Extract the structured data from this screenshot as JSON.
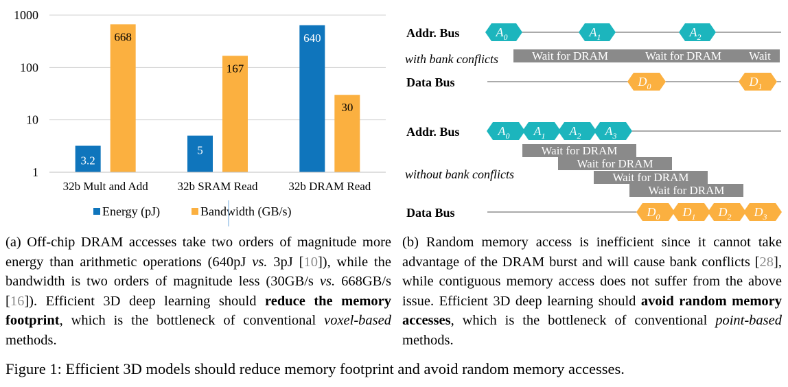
{
  "chart_data": {
    "type": "bar",
    "scale": "log",
    "ylim": [
      1,
      1000
    ],
    "y_ticks": [
      "1",
      "10",
      "100",
      "1000"
    ],
    "grid": true,
    "legend_position": "bottom",
    "categories": [
      "32b Mult and Add",
      "32b SRAM Read",
      "32b DRAM Read"
    ],
    "series": [
      {
        "name": "Energy (pJ)",
        "color": "#0f75bc",
        "values": [
          3.2,
          5,
          640
        ],
        "labels": [
          "3.2",
          "5",
          "640"
        ]
      },
      {
        "name": "Bandwidth (GB/s)",
        "color": "#fbb040",
        "values": [
          668,
          167,
          30
        ],
        "labels": [
          "668",
          "167",
          "30"
        ]
      }
    ]
  },
  "diagram": {
    "addr_color": "#1cb5bd",
    "data_color": "#fbb040",
    "wait_color": "#8a8a8a",
    "top": {
      "addr_label": "Addr. Bus",
      "conflict_label": "with bank conflicts",
      "data_label": "Data Bus",
      "addr_tokens": [
        {
          "base": "A",
          "sub": "0"
        },
        {
          "base": "A",
          "sub": "1"
        },
        {
          "base": "A",
          "sub": "2"
        }
      ],
      "wait_labels": [
        "Wait for DRAM",
        "Wait for DRAM",
        "Wait"
      ],
      "data_tokens": [
        {
          "base": "D",
          "sub": "0"
        },
        {
          "base": "D",
          "sub": "1"
        }
      ]
    },
    "bottom": {
      "addr_label": "Addr. Bus",
      "conflict_label": "without bank conflicts",
      "data_label": "Data  Bus",
      "addr_tokens": [
        {
          "base": "A",
          "sub": "0"
        },
        {
          "base": "A",
          "sub": "1"
        },
        {
          "base": "A",
          "sub": "2"
        },
        {
          "base": "A",
          "sub": "3"
        }
      ],
      "wait_labels": [
        "Wait for DRAM",
        "Wait for DRAM",
        "Wait for DRAM",
        "Wait for DRAM"
      ],
      "data_tokens": [
        {
          "base": "D",
          "sub": "0"
        },
        {
          "base": "D",
          "sub": "1"
        },
        {
          "base": "D",
          "sub": "2"
        },
        {
          "base": "D",
          "sub": "3"
        }
      ]
    }
  },
  "caption_a": {
    "t1": "(a) Off-chip DRAM accesses take two orders of magnitude more energy than arithmetic operations (640pJ ",
    "vs1": "vs.",
    "t2": " 3pJ [",
    "c1": "10",
    "t3": "]), while the bandwidth is two orders of magnitude less (30GB/s ",
    "vs2": "vs.",
    "t4": " 668GB/s [",
    "c2": "16",
    "t5": "]). Efficient 3D deep learning should ",
    "bold": "reduce the memory footprint",
    "t6": ", which is the bottleneck of conventional ",
    "em": "voxel-based",
    "t7": " methods."
  },
  "caption_b": {
    "t1": "(b) Random memory access is inefficient since it cannot take advantage of the DRAM burst and will cause bank conflicts [",
    "c1": "28",
    "t2": "], while contiguous memory access does not suffer from the above issue. Efficient 3D deep learning should ",
    "bold": "avoid random memory accesses",
    "t3": ", which is the bottleneck of conventional ",
    "em": "point-based",
    "t4": " methods."
  },
  "figure_caption": "Figure 1: Efficient 3D models should reduce memory footprint and avoid random memory accesses."
}
